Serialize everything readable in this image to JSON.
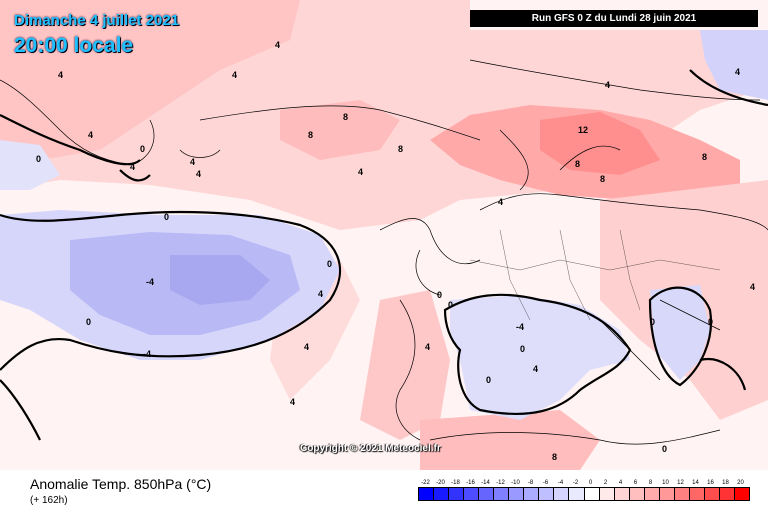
{
  "header": {
    "date": "Dimanche 4 juillet 2021",
    "time": "20:00 locale",
    "run": "Run GFS 0 Z du Lundi 28 juin 2021"
  },
  "copyright": "Copyright © 2021 Meteociel.fr",
  "footer": {
    "title": "Anomalie Temp. 850hPa (°C)",
    "subtitle": "(+ 162h)"
  },
  "scale": {
    "labels": [
      "-22",
      "-20",
      "-18",
      "-16",
      "-14",
      "-12",
      "-10",
      "-8",
      "-6",
      "-4",
      "-2",
      "0",
      "2",
      "4",
      "6",
      "8",
      "10",
      "12",
      "14",
      "16",
      "18",
      "20"
    ],
    "colors": [
      "#0000ff",
      "#1a1aff",
      "#3333ff",
      "#4d4dff",
      "#6666ff",
      "#8080ff",
      "#9999ff",
      "#ababff",
      "#bfbfff",
      "#d4d4ff",
      "#eaeaff",
      "#ffffff",
      "#ffeaea",
      "#ffd4d4",
      "#ffbfbf",
      "#ffabab",
      "#ff9999",
      "#ff8080",
      "#ff6666",
      "#ff4d4d",
      "#ff3333",
      "#ff0000"
    ]
  },
  "contour_labels": [
    {
      "text": "4"
    },
    {
      "text": "4"
    },
    {
      "text": "4"
    },
    {
      "text": "4"
    },
    {
      "text": "4"
    },
    {
      "text": "4"
    },
    {
      "text": "0"
    },
    {
      "text": "4"
    },
    {
      "text": "0"
    },
    {
      "text": "4"
    },
    {
      "text": "8"
    },
    {
      "text": "8"
    },
    {
      "text": "8"
    },
    {
      "text": "4"
    },
    {
      "text": "4"
    },
    {
      "text": "12"
    },
    {
      "text": "8"
    },
    {
      "text": "8"
    },
    {
      "text": "8"
    },
    {
      "text": "4"
    },
    {
      "text": "0"
    },
    {
      "text": "-4"
    },
    {
      "text": "-4"
    },
    {
      "text": "0"
    },
    {
      "text": "0"
    },
    {
      "text": "4"
    },
    {
      "text": "4"
    },
    {
      "text": "0"
    },
    {
      "text": "0"
    },
    {
      "text": "-4"
    },
    {
      "text": "0"
    },
    {
      "text": "0"
    },
    {
      "text": "4"
    },
    {
      "text": "8"
    },
    {
      "text": "0"
    },
    {
      "text": "0"
    },
    {
      "text": "4"
    },
    {
      "text": "4"
    },
    {
      "text": "0"
    },
    {
      "text": "4"
    }
  ]
}
